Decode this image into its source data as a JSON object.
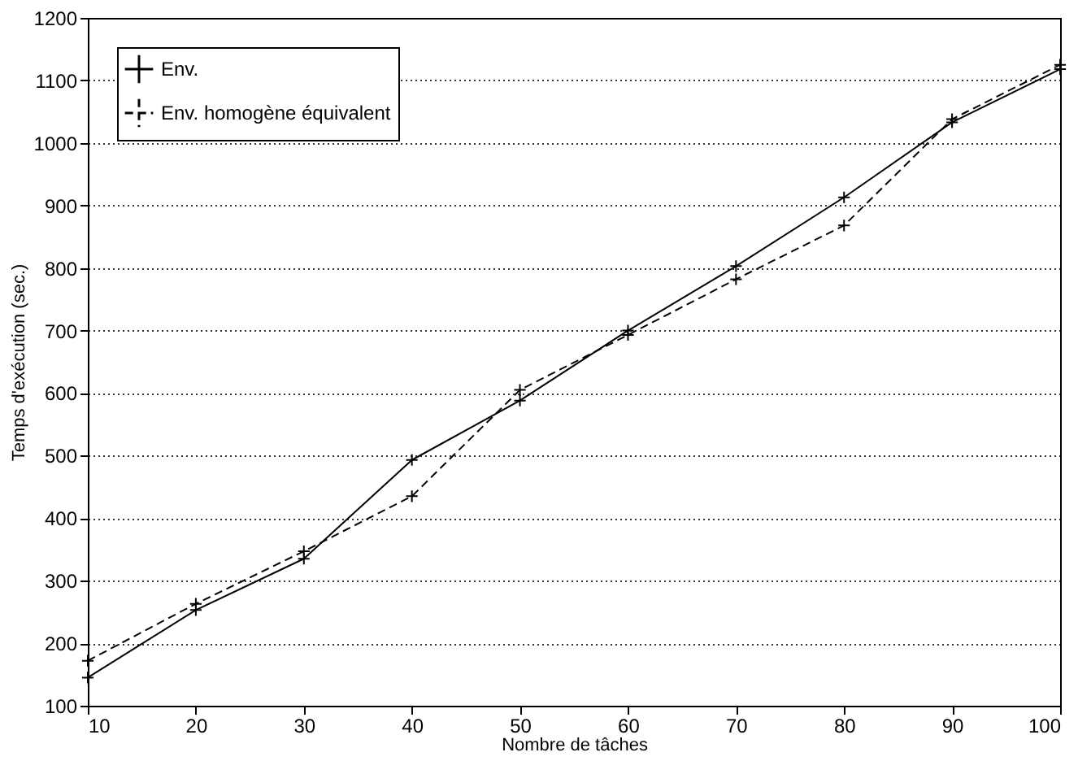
{
  "chart_data": {
    "type": "line",
    "xlabel": "Nombre de tâches",
    "ylabel": "Temps d'exécution (sec.)",
    "x": [
      10,
      20,
      30,
      40,
      50,
      60,
      70,
      80,
      90,
      100
    ],
    "series": [
      {
        "name": "Env.",
        "color": "#000000",
        "line_style": "solid",
        "marker": "cross",
        "values": [
          145,
          253,
          335,
          493,
          588,
          700,
          803,
          913,
          1033,
          1118
        ]
      },
      {
        "name": "Env. homogène équivalent",
        "color": "#000000",
        "line_style": "dashed",
        "marker": "cross",
        "values": [
          172,
          263,
          347,
          435,
          605,
          693,
          782,
          868,
          1038,
          1125
        ]
      }
    ],
    "xlim": [
      10,
      100
    ],
    "xticks": [
      10,
      20,
      30,
      40,
      50,
      60,
      70,
      80,
      90,
      100
    ],
    "ylim": [
      100,
      1200
    ],
    "yticks": [
      100,
      200,
      300,
      400,
      500,
      600,
      700,
      800,
      900,
      1000,
      1100,
      1200
    ],
    "grid": "y",
    "legend": "top left"
  }
}
